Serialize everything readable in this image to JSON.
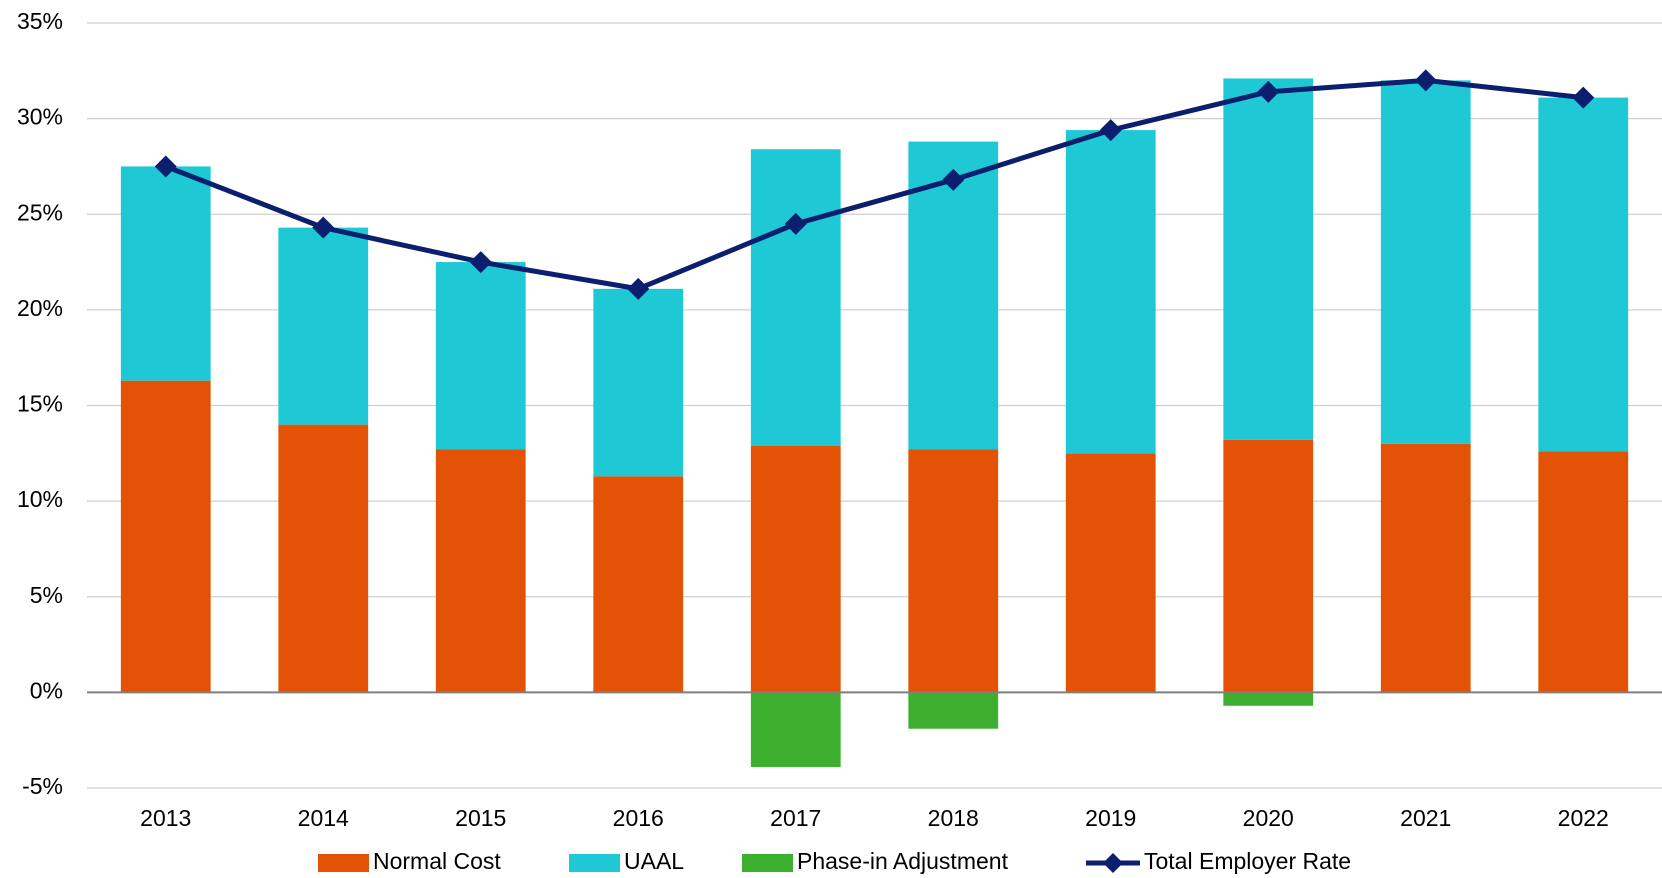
{
  "chart_data": {
    "type": "bar",
    "categories": [
      "2013",
      "2014",
      "2015",
      "2016",
      "2017",
      "2018",
      "2019",
      "2020",
      "2021",
      "2022"
    ],
    "series": [
      {
        "name": "Normal Cost",
        "type": "bar",
        "color": "#e35205",
        "values": [
          16.3,
          14.0,
          12.7,
          11.3,
          12.9,
          12.7,
          12.5,
          13.2,
          13.0,
          12.6
        ]
      },
      {
        "name": "UAAL",
        "type": "bar",
        "color": "#1ec8d4",
        "values": [
          11.2,
          10.3,
          9.8,
          9.8,
          15.5,
          16.1,
          16.9,
          18.9,
          19.0,
          18.5
        ]
      },
      {
        "name": "Phase-in Adjustment",
        "type": "bar",
        "color": "#3cb02e",
        "values": [
          null,
          null,
          null,
          null,
          -3.9,
          -1.9,
          null,
          -0.7,
          null,
          null
        ]
      },
      {
        "name": "Total Employer Rate",
        "type": "line",
        "color": "#0b1f6e",
        "values": [
          27.5,
          24.3,
          22.5,
          21.1,
          24.5,
          26.8,
          29.4,
          31.4,
          32.0,
          31.1
        ]
      }
    ],
    "ylim": [
      -5,
      35
    ],
    "yticks": [
      {
        "value": -5,
        "label": "-5%"
      },
      {
        "value": 0,
        "label": "0%"
      },
      {
        "value": 5,
        "label": "5%"
      },
      {
        "value": 10,
        "label": "10%"
      },
      {
        "value": 15,
        "label": "15%"
      },
      {
        "value": 20,
        "label": "20%"
      },
      {
        "value": 25,
        "label": "25%"
      },
      {
        "value": 30,
        "label": "30%"
      },
      {
        "value": 35,
        "label": "35%"
      }
    ],
    "grid": true,
    "legend": "bottom"
  }
}
